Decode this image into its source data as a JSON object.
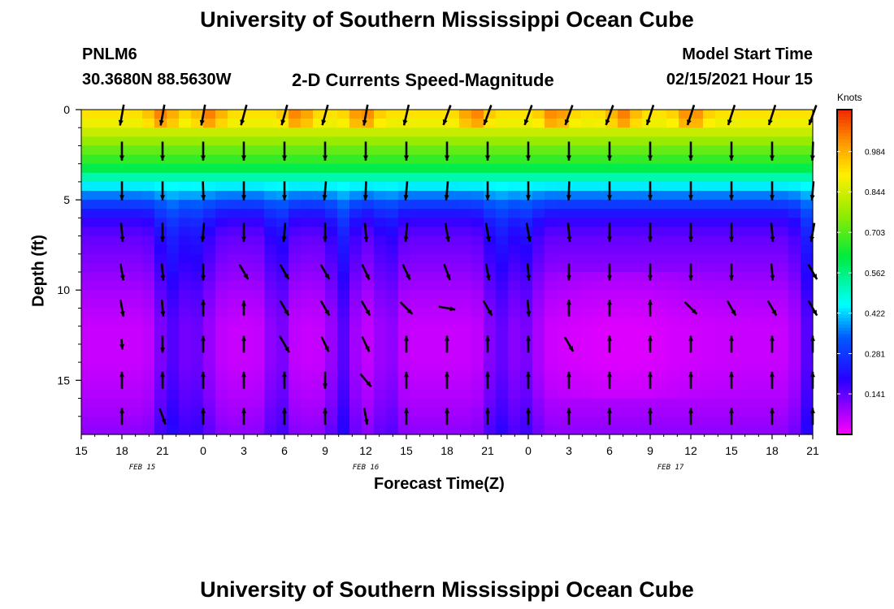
{
  "header": {
    "title": "University of Southern Mississippi Ocean Cube",
    "station": "PNLM6",
    "coords": "30.3680N 88.5630W",
    "subtitle": "2-D Currents Speed-Magnitude",
    "model_label": "Model Start Time",
    "model_time": "02/15/2021 Hour 15"
  },
  "footer": {
    "title": "University of Southern Mississippi Ocean Cube"
  },
  "colors": {
    "axis": "#000000",
    "arrow": "#000000"
  },
  "chart_data": {
    "type": "heatmap",
    "title": "2-D Currents Speed-Magnitude",
    "xlabel": "Forecast Time(Z)",
    "ylabel": "Depth (ft)",
    "colorbar_label": "Knots",
    "colorbar_ticks": [
      "0.141",
      "0.281",
      "0.422",
      "0.562",
      "0.703",
      "0.844",
      "0.984"
    ],
    "colorbar_range": [
      0,
      1.13
    ],
    "xlim": [
      15,
      69
    ],
    "ylim": [
      0,
      18
    ],
    "y_ticks": [
      0,
      5,
      10,
      15
    ],
    "x_tick_values": [
      15,
      18,
      21,
      24,
      27,
      30,
      33,
      36,
      39,
      42,
      45,
      48,
      51,
      54,
      57,
      60,
      63,
      66,
      69
    ],
    "x_tick_labels": [
      "15",
      "18",
      "21",
      "0",
      "3",
      "6",
      "9",
      "12",
      "15",
      "18",
      "21",
      "0",
      "3",
      "6",
      "9",
      "12",
      "15",
      "18",
      "21"
    ],
    "date_labels": [
      {
        "text": "FEB 15",
        "hour": 19.5
      },
      {
        "text": "FEB 16",
        "hour": 36
      },
      {
        "text": "FEB 17",
        "hour": 58.5
      }
    ],
    "depth_speed_profile": [
      {
        "depth": 0.3,
        "speed": 0.92
      },
      {
        "depth": 1.0,
        "speed": 0.86
      },
      {
        "depth": 2.0,
        "speed": 0.74
      },
      {
        "depth": 3.0,
        "speed": 0.65
      },
      {
        "depth": 4.0,
        "speed": 0.48
      },
      {
        "depth": 5.0,
        "speed": 0.32
      },
      {
        "depth": 6.0,
        "speed": 0.19
      },
      {
        "depth": 7.0,
        "speed": 0.14
      },
      {
        "depth": 8.5,
        "speed": 0.11
      },
      {
        "depth": 10.0,
        "speed": 0.08
      },
      {
        "depth": 12.0,
        "speed": 0.05
      },
      {
        "depth": 14.0,
        "speed": 0.05
      },
      {
        "depth": 16.0,
        "speed": 0.07
      },
      {
        "depth": 17.9,
        "speed": 0.1
      }
    ],
    "low_speed_bands": [
      {
        "hour": 21.5,
        "width": 1.0,
        "boost": 0.1
      },
      {
        "hour": 23.5,
        "width": 1.2,
        "boost": 0.08
      },
      {
        "hour": 29.5,
        "width": 0.8,
        "boost": 0.08
      },
      {
        "hour": 34.3,
        "width": 0.9,
        "boost": 0.1
      },
      {
        "hour": 37.6,
        "width": 0.8,
        "boost": 0.06
      },
      {
        "hour": 45.8,
        "width": 1.0,
        "boost": 0.09
      },
      {
        "hour": 47.8,
        "width": 1.0,
        "boost": 0.07
      },
      {
        "hour": 68.6,
        "width": 0.8,
        "boost": 0.1
      }
    ],
    "surface_peaks": [
      21,
      24.5,
      31,
      35.8,
      44,
      50,
      55,
      60
    ],
    "vector_hours": [
      18,
      21,
      24,
      27,
      30,
      33,
      36,
      39,
      42,
      45,
      48,
      51,
      54,
      57,
      60,
      63,
      66,
      69
    ],
    "vector_depths": [
      0.3,
      2.3,
      4.5,
      6.8,
      9.0,
      11.0,
      13.0,
      15.0,
      17.0
    ],
    "vector_angles_deg": [
      [
        -100,
        -100,
        -100,
        -105,
        -105,
        -105,
        -100,
        -103,
        -110,
        -110,
        -110,
        -110,
        -110,
        -108,
        -108,
        -108,
        -108,
        -110
      ],
      [
        -90,
        -90,
        -90,
        -90,
        -90,
        -90,
        -90,
        -90,
        -90,
        -90,
        -90,
        -90,
        -90,
        -90,
        -90,
        -90,
        -90,
        -92
      ],
      [
        -90,
        -90,
        -88,
        -90,
        -90,
        -95,
        -92,
        -95,
        -95,
        -90,
        -90,
        -92,
        -90,
        -90,
        -90,
        -90,
        -90,
        -95
      ],
      [
        -85,
        -90,
        -95,
        -90,
        -95,
        -90,
        -85,
        -95,
        -80,
        -80,
        -80,
        -85,
        -90,
        -90,
        -90,
        -90,
        -85,
        -100
      ],
      [
        -80,
        -85,
        -90,
        -60,
        -60,
        -60,
        -65,
        -65,
        -70,
        -80,
        -85,
        -90,
        -90,
        -90,
        -90,
        -90,
        -85,
        -60
      ],
      [
        -80,
        -85,
        90,
        90,
        -60,
        -60,
        -60,
        -45,
        -10,
        -60,
        -85,
        90,
        90,
        90,
        -45,
        -60,
        -60,
        -60
      ],
      [
        -85,
        -90,
        90,
        90,
        -60,
        -65,
        -65,
        90,
        90,
        90,
        90,
        -60,
        90,
        90,
        90,
        90,
        90,
        90
      ],
      [
        90,
        90,
        90,
        90,
        90,
        -90,
        -50,
        90,
        90,
        90,
        90,
        90,
        90,
        90,
        90,
        90,
        90,
        90
      ],
      [
        90,
        -70,
        90,
        90,
        90,
        90,
        -80,
        90,
        90,
        90,
        90,
        90,
        90,
        90,
        90,
        90,
        90,
        90
      ]
    ],
    "vector_lengths": [
      [
        1,
        1,
        1,
        1,
        1,
        1,
        1,
        1,
        1,
        1,
        1,
        1,
        1,
        1,
        1,
        1,
        1,
        1
      ],
      [
        0.9,
        0.9,
        0.9,
        0.9,
        0.9,
        0.9,
        0.9,
        0.9,
        0.9,
        0.9,
        0.9,
        0.9,
        0.9,
        0.9,
        0.9,
        0.9,
        0.9,
        0.9
      ],
      [
        0.9,
        0.9,
        0.9,
        0.9,
        0.9,
        0.9,
        0.9,
        0.9,
        0.9,
        0.9,
        0.9,
        0.9,
        0.9,
        0.9,
        0.9,
        0.9,
        0.9,
        0.9
      ],
      [
        0.9,
        0.9,
        0.9,
        0.9,
        0.9,
        0.9,
        0.9,
        0.9,
        0.9,
        0.9,
        0.9,
        0.9,
        0.9,
        0.9,
        0.9,
        0.9,
        0.9,
        0.9
      ],
      [
        0.8,
        0.8,
        0.8,
        0.8,
        0.8,
        0.8,
        0.8,
        0.8,
        0.8,
        0.8,
        0.8,
        0.8,
        0.8,
        0.8,
        0.8,
        0.8,
        0.8,
        0.8
      ],
      [
        0.8,
        0.8,
        0.8,
        0.7,
        0.8,
        0.8,
        0.8,
        0.8,
        0.8,
        0.8,
        0.8,
        0.8,
        0.8,
        0.8,
        0.8,
        0.8,
        0.8,
        0.8
      ],
      [
        0.5,
        0.8,
        0.8,
        0.8,
        0.9,
        0.8,
        0.8,
        0.8,
        0.8,
        0.8,
        0.8,
        0.8,
        0.8,
        0.8,
        0.8,
        0.8,
        0.8,
        0.8
      ],
      [
        0.8,
        0.8,
        0.8,
        0.8,
        0.8,
        0.8,
        0.8,
        0.8,
        0.8,
        0.8,
        0.8,
        0.8,
        0.8,
        0.8,
        0.8,
        0.8,
        0.8,
        0.8
      ],
      [
        0.8,
        0.8,
        0.8,
        0.8,
        0.8,
        0.8,
        0.8,
        0.8,
        0.8,
        0.8,
        0.8,
        0.8,
        0.8,
        0.8,
        0.8,
        0.8,
        0.8,
        0.8
      ]
    ]
  }
}
